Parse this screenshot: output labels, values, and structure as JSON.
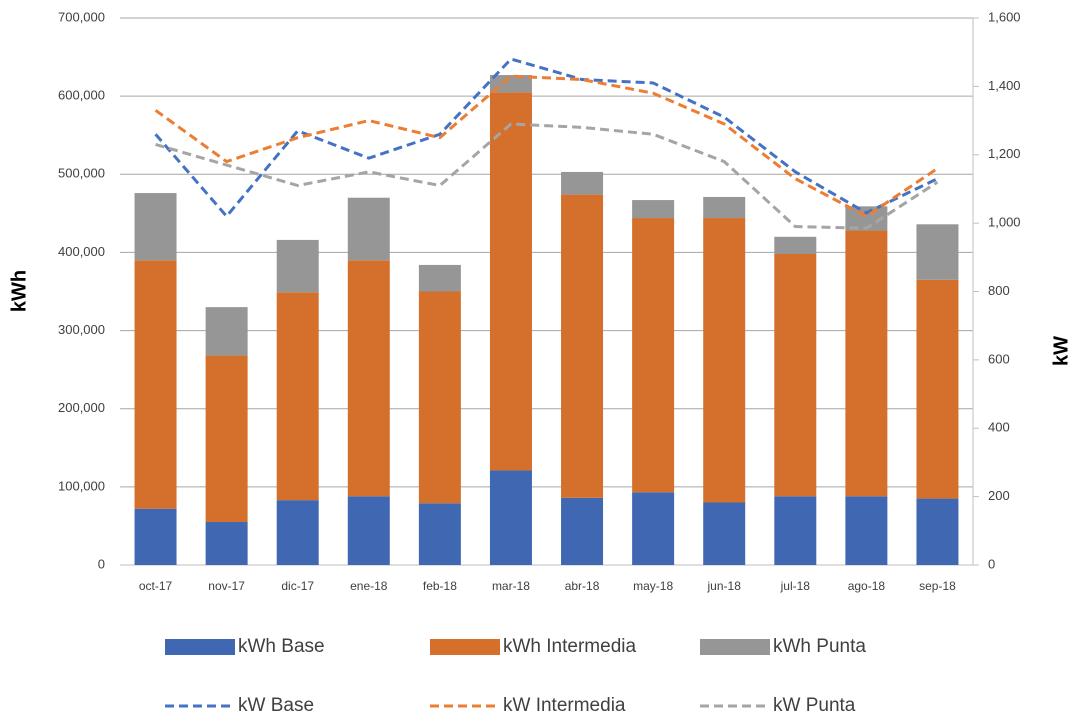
{
  "chart_data": {
    "type": "combo",
    "categories": [
      "oct-17",
      "nov-17",
      "dic-17",
      "ene-18",
      "feb-18",
      "mar-18",
      "abr-18",
      "may-18",
      "jun-18",
      "jul-18",
      "ago-18",
      "sep-18"
    ],
    "y_label": "kWh",
    "y2_label": "kW",
    "ylim": [
      0,
      700000
    ],
    "yticks": [
      0,
      {
        "value": 100000,
        "label": "100,000"
      },
      {
        "value": 200000,
        "label": "200,000"
      },
      {
        "value": 300000,
        "label": "300,000"
      },
      {
        "value": 400000,
        "label": "400,000"
      },
      {
        "value": 500000,
        "label": "500,000"
      },
      {
        "value": 600000,
        "label": "600,000"
      },
      {
        "value": 700000,
        "label": "700,000"
      }
    ],
    "y2lim": [
      0,
      1600
    ],
    "y2ticks": [
      0,
      200,
      400,
      600,
      800,
      {
        "value": 1000,
        "label": "1,000"
      },
      {
        "value": 1200,
        "label": "1,200"
      },
      {
        "value": 1400,
        "label": "1,400"
      },
      {
        "value": 1600,
        "label": "1,600"
      }
    ],
    "grid": true,
    "stacked": true,
    "legend": "bottom",
    "series": [
      {
        "name": "kWh Base",
        "type": "bar",
        "color": "#4068b2",
        "values": [
          72000,
          55000,
          83000,
          88000,
          79000,
          121000,
          86000,
          93000,
          80000,
          88000,
          88000,
          85000
        ]
      },
      {
        "name": "kWh Intermedia",
        "type": "bar",
        "color": "#d4702c",
        "values": [
          318000,
          213000,
          266000,
          302000,
          271000,
          484000,
          388000,
          351000,
          364000,
          310000,
          340000,
          280000
        ]
      },
      {
        "name": "kWh Punta",
        "type": "bar",
        "color": "#969696",
        "values": [
          86000,
          62000,
          67000,
          80000,
          34000,
          22000,
          29000,
          23000,
          27000,
          22000,
          31000,
          71000
        ]
      },
      {
        "name": "kW Base",
        "type": "line",
        "axis": "y2",
        "color": "#4472c4",
        "values": [
          1260,
          1020,
          1270,
          1190,
          1260,
          1480,
          1420,
          1410,
          1310,
          1150,
          1030,
          1130
        ]
      },
      {
        "name": "kW Intermedia",
        "type": "line",
        "axis": "y2",
        "color": "#ed7d31",
        "values": [
          1330,
          1180,
          1250,
          1300,
          1250,
          1430,
          1420,
          1380,
          1290,
          1130,
          1020,
          1160
        ]
      },
      {
        "name": "kW Punta",
        "type": "line",
        "axis": "y2",
        "color": "#a5a5a5",
        "values": [
          1230,
          1170,
          1110,
          1150,
          1110,
          1290,
          1280,
          1260,
          1180,
          990,
          985,
          1120
        ]
      }
    ]
  }
}
